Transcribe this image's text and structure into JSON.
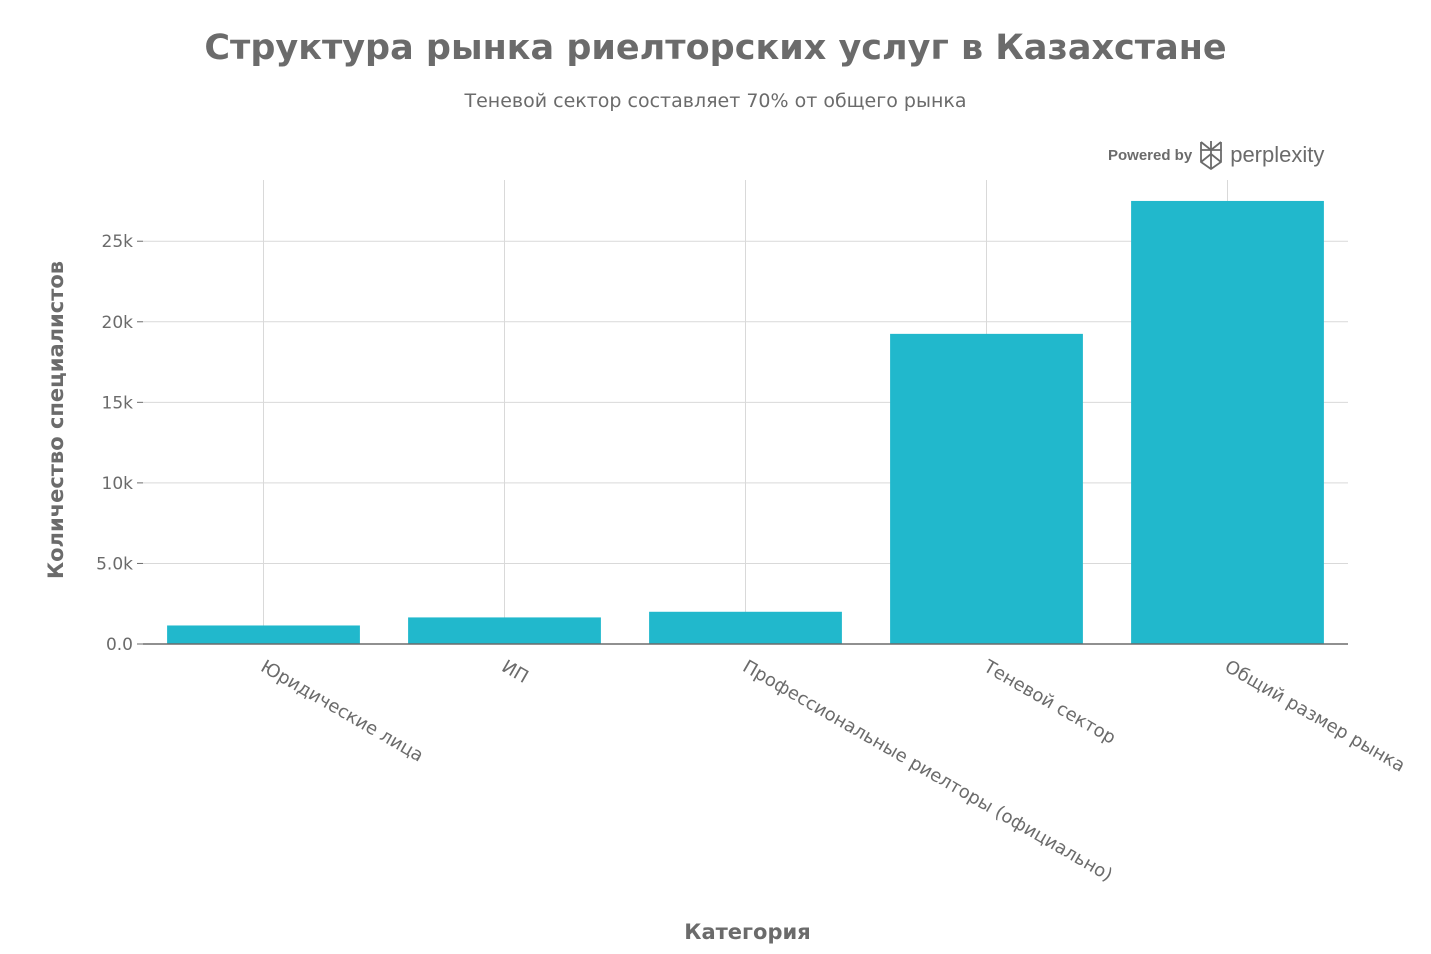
{
  "chart_data": {
    "type": "bar",
    "title": "Структура рынка риелторских услуг в Казахстане",
    "subtitle": "Теневой сектор составляет 70% от общего рынка",
    "xlabel": "Категория",
    "ylabel": "Количество специалистов",
    "categories": [
      "Юридические лица",
      "ИП",
      "Профессиональные риелторы (официально)",
      "Теневой сектор",
      "Общий размер рынка"
    ],
    "values": [
      1150,
      1650,
      2000,
      19250,
      27500
    ],
    "ylim": [
      0,
      28800
    ],
    "yticks": [
      0,
      5000,
      10000,
      15000,
      20000,
      25000
    ],
    "ytick_labels": [
      "0.0",
      "5.0k",
      "10k",
      "15k",
      "20k",
      "25k"
    ],
    "bar_color": "#21b8cc",
    "grid": true
  },
  "branding": {
    "powered_label": "Powered by",
    "name": "perplexity"
  }
}
